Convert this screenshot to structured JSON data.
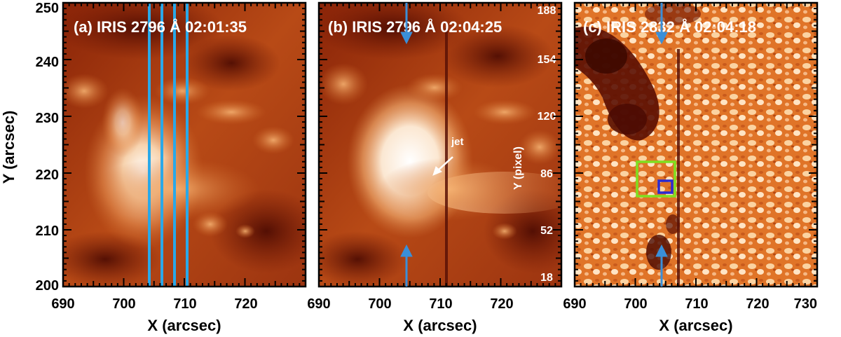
{
  "figure": {
    "panels": [
      {
        "id": "a",
        "title": "(a)  IRIS  2796  Å 02:01:35"
      },
      {
        "id": "b",
        "title": "(b)  IRIS  2796  Å 02:04:25"
      },
      {
        "id": "c",
        "title": "(c)  IRIS  2832  Å 02:04:18"
      }
    ],
    "y_axis_label": "Y (arcsec)",
    "x_axis_label": "X (arcsec)",
    "y_ticks": [
      "250",
      "240",
      "230",
      "220",
      "210",
      "200"
    ],
    "x_ticks_ab": [
      "690",
      "700",
      "710",
      "720"
    ],
    "x_ticks_c": [
      "690",
      "700",
      "710",
      "720",
      "730"
    ],
    "pixel_axis_label": "Y (pixel)",
    "pixel_ticks": [
      "188",
      "154",
      "120",
      "86",
      "52",
      "18"
    ],
    "annotation_jet": "jet",
    "colors": {
      "slit_lines": "#2aa8e8",
      "arrows": "#3a8fd8",
      "green_box": "#7fe020",
      "blue_box": "#2a2ad0",
      "image_dark": "#6a1404",
      "image_mid": "#c8581a",
      "image_bright": "#ffe6c2"
    }
  }
}
